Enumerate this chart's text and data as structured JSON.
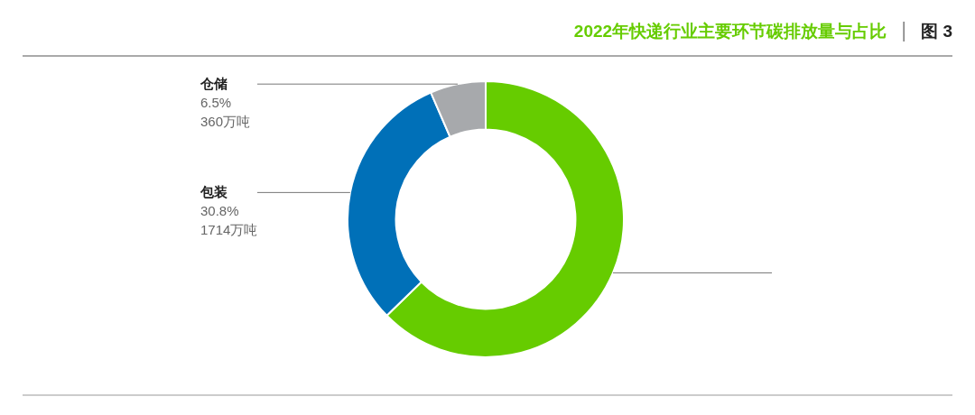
{
  "chart_data": {
    "type": "donut",
    "title": "2022年快递行业主要环节碳排放量与占比",
    "annotations": [
      "图 3"
    ],
    "categories": [
      null,
      "包装",
      "仓储"
    ],
    "values": [
      62.7,
      30.8,
      6.5
    ],
    "colors": [
      "#66cc00",
      "#0070b8",
      "#a7a9ac"
    ],
    "value_labels": [
      null,
      "30.8%\n1714万吨",
      "6.5%\n360万吨"
    ],
    "legend": false
  }
}
